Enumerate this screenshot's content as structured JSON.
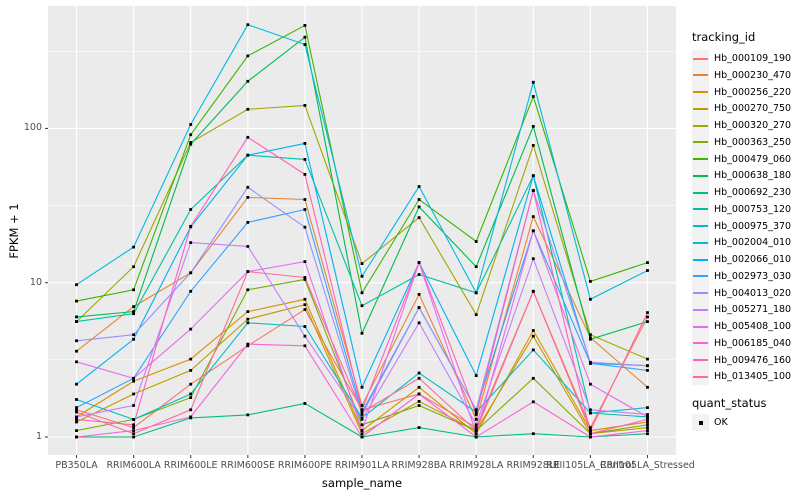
{
  "chart_data": {
    "type": "line",
    "title": "",
    "xlabel": "sample_name",
    "ylabel": "FPKM + 1",
    "yscale": "log10",
    "yticks": [
      1,
      10,
      100
    ],
    "ylim": [
      1,
      600
    ],
    "grid": "on",
    "legend_position": "right",
    "legend_title": "tracking_id",
    "panel_bg": "#EBEBEB",
    "grid_color": "#FFFFFF",
    "point_color": "#000000",
    "categories": [
      "PB350LA",
      "RRIM600LA",
      "RRIM600LE",
      "RRIM600SE",
      "RRIM600PE",
      "RRIM901LA",
      "RRIM928BA",
      "RRIM928LA",
      "RRIM928LE",
      "RRII105LA_Control",
      "RRII105LA_Stressed"
    ],
    "series": [
      {
        "name": "Hb_000109_190",
        "color": "#F8766D",
        "values": [
          1.5,
          1.15,
          2.2,
          3.9,
          6.7,
          1.5,
          1.9,
          1.15,
          8.8,
          1.15,
          6.0
        ]
      },
      {
        "name": "Hb_000230_470",
        "color": "#EA8331",
        "values": [
          3.6,
          7.0,
          11.6,
          35.7,
          34.6,
          1.6,
          8.4,
          1.3,
          26.8,
          4.4,
          2.1
        ]
      },
      {
        "name": "Hb_000256_220",
        "color": "#D89000",
        "values": [
          1.35,
          2.3,
          3.2,
          6.5,
          7.8,
          1.1,
          2.1,
          1.05,
          4.9,
          1.1,
          1.25
        ]
      },
      {
        "name": "Hb_000270_750",
        "color": "#C09B00",
        "values": [
          1.25,
          1.9,
          2.7,
          5.8,
          7.2,
          1.05,
          1.7,
          1.1,
          4.5,
          1.05,
          1.15
        ]
      },
      {
        "name": "Hb_000320_270",
        "color": "#A3A500",
        "values": [
          5.6,
          12.7,
          81,
          133,
          141,
          13.3,
          26.4,
          6.2,
          77.6,
          4.6,
          3.2
        ]
      },
      {
        "name": "Hb_000363_250",
        "color": "#7CAE00",
        "values": [
          1.1,
          1.3,
          1.8,
          9.0,
          10.5,
          1.2,
          1.6,
          1.1,
          2.4,
          1.05,
          1.2
        ]
      },
      {
        "name": "Hb_000479_060",
        "color": "#39B600",
        "values": [
          7.6,
          9.0,
          91,
          295,
          465,
          8.6,
          34.6,
          18.5,
          161,
          10.2,
          13.5
        ]
      },
      {
        "name": "Hb_000638_180",
        "color": "#00BB4E",
        "values": [
          6.0,
          6.5,
          79,
          202,
          390,
          4.7,
          31.0,
          12.7,
          103,
          4.3,
          5.6
        ]
      },
      {
        "name": "Hb_000692_230",
        "color": "#00BF7D",
        "values": [
          1.0,
          1.0,
          1.33,
          1.39,
          1.65,
          1.0,
          1.15,
          1.0,
          1.05,
          1.0,
          1.05
        ]
      },
      {
        "name": "Hb_000753_120",
        "color": "#00C1A3",
        "values": [
          5.6,
          6.3,
          29.8,
          67,
          63,
          7.1,
          11.3,
          8.6,
          49.4,
          1.43,
          1.35
        ]
      },
      {
        "name": "Hb_000975_370",
        "color": "#00BFC4",
        "values": [
          1.75,
          1.3,
          1.9,
          5.5,
          5.2,
          1.33,
          2.6,
          1.45,
          3.67,
          1.43,
          1.55
        ]
      },
      {
        "name": "Hb_002004_010",
        "color": "#00BAE0",
        "values": [
          9.7,
          17,
          106,
          470,
          350,
          11,
          42,
          8.6,
          199,
          7.8,
          12
        ]
      },
      {
        "name": "Hb_002066_010",
        "color": "#00B0F6",
        "values": [
          2.2,
          4.3,
          23,
          67,
          80,
          2.1,
          13.5,
          2.5,
          49.4,
          3.0,
          2.9
        ]
      },
      {
        "name": "Hb_002973_030",
        "color": "#35A2FF",
        "values": [
          1.55,
          2.4,
          8.8,
          24.6,
          29.8,
          1.45,
          6.9,
          1.5,
          21.7,
          3.0,
          2.7
        ]
      },
      {
        "name": "Hb_004013_020",
        "color": "#9590FF",
        "values": [
          4.2,
          4.6,
          11.6,
          41.5,
          22.9,
          1.4,
          6.9,
          1.5,
          39.5,
          3.05,
          2.9
        ]
      },
      {
        "name": "Hb_005271_180",
        "color": "#C77CFF",
        "values": [
          1.35,
          1.6,
          18.2,
          17.2,
          4.5,
          1.3,
          5.5,
          1.2,
          14.3,
          1.5,
          1.4
        ]
      },
      {
        "name": "Hb_005408_100",
        "color": "#E76BF3",
        "values": [
          3.07,
          2.4,
          5.0,
          11.8,
          13.7,
          1.1,
          13.5,
          1.05,
          21.7,
          2.2,
          1.35
        ]
      },
      {
        "name": "Hb_006185_040",
        "color": "#FA62DB",
        "values": [
          1.0,
          1.1,
          1.35,
          4.0,
          3.9,
          1.0,
          1.9,
          1.0,
          1.69,
          1.0,
          1.1
        ]
      },
      {
        "name": "Hb_009476_160",
        "color": "#FF62BC",
        "values": [
          1.3,
          1.2,
          23.2,
          87.6,
          50.3,
          1.5,
          13.5,
          1.4,
          39.5,
          1.05,
          1.3
        ]
      },
      {
        "name": "Hb_013405_100",
        "color": "#FF6A98",
        "values": [
          1.45,
          1.05,
          1.5,
          11.8,
          10.8,
          1.45,
          2.4,
          1.1,
          8.8,
          1.1,
          6.4
        ]
      }
    ],
    "quant_status": {
      "title": "quant_status",
      "items": [
        {
          "label": "OK"
        }
      ]
    }
  }
}
